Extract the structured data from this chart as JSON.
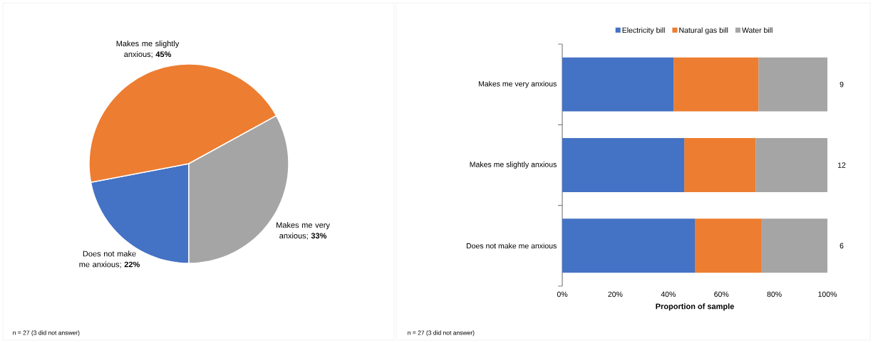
{
  "chart_data": [
    {
      "type": "pie",
      "categories": [
        "Does not make me anxious",
        "Makes me slightly anxious",
        "Makes me very anxious"
      ],
      "values": [
        22,
        45,
        33
      ],
      "colors": [
        "#4472c4",
        "#ed7d31",
        "#a5a5a5"
      ],
      "value_labels": [
        "; **22%**",
        "; **45%**",
        "; **33%**"
      ],
      "annotations": [
        "n = 27 (3 did not answer)"
      ]
    },
    {
      "type": "bar",
      "orientation": "horizontal",
      "stacked": true,
      "categories": [
        "Makes me very anxious",
        "Makes me slightly anxious",
        "Does not make me anxious"
      ],
      "series": [
        {
          "name": "Electricity bill",
          "color": "#4472c4",
          "values": [
            42,
            46,
            50
          ]
        },
        {
          "name": "Natural gas bill",
          "color": "#ed7d31",
          "values": [
            32,
            27,
            25
          ]
        },
        {
          "name": "Water bill",
          "color": "#a5a5a5",
          "values": [
            26,
            27,
            25
          ]
        }
      ],
      "xlim": [
        0,
        100
      ],
      "xticks": [
        {
          "value": 0,
          "label": "0%"
        },
        {
          "value": 20,
          "label": "20%"
        },
        {
          "value": 40,
          "label": "40%"
        },
        {
          "value": 60,
          "label": "60%"
        },
        {
          "value": 80,
          "label": "80%"
        },
        {
          "value": 100,
          "label": "100%"
        }
      ],
      "xlabel": "Proportion of sample",
      "legend": "top",
      "grid": false,
      "annotations": [
        "9",
        "12",
        "6",
        "n = 27 (3 did not answer)"
      ]
    }
  ]
}
